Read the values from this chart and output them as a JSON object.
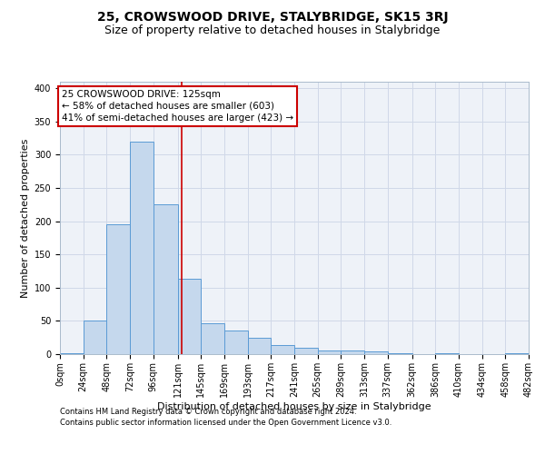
{
  "title": "25, CROWSWOOD DRIVE, STALYBRIDGE, SK15 3RJ",
  "subtitle": "Size of property relative to detached houses in Stalybridge",
  "xlabel": "Distribution of detached houses by size in Stalybridge",
  "ylabel": "Number of detached properties",
  "footnote1": "Contains HM Land Registry data © Crown copyright and database right 2024.",
  "footnote2": "Contains public sector information licensed under the Open Government Licence v3.0.",
  "annotation_title": "25 CROWSWOOD DRIVE: 125sqm",
  "annotation_line1": "← 58% of detached houses are smaller (603)",
  "annotation_line2": "41% of semi-detached houses are larger (423) →",
  "bin_edges": [
    0,
    24,
    48,
    72,
    96,
    121,
    145,
    169,
    193,
    217,
    241,
    265,
    289,
    313,
    337,
    362,
    386,
    410,
    434,
    458,
    482
  ],
  "bin_labels": [
    "0sqm",
    "24sqm",
    "48sqm",
    "72sqm",
    "96sqm",
    "121sqm",
    "145sqm",
    "169sqm",
    "193sqm",
    "217sqm",
    "241sqm",
    "265sqm",
    "289sqm",
    "313sqm",
    "337sqm",
    "362sqm",
    "386sqm",
    "410sqm",
    "434sqm",
    "458sqm",
    "482sqm"
  ],
  "bar_heights": [
    2,
    50,
    195,
    320,
    225,
    113,
    46,
    35,
    25,
    14,
    9,
    6,
    5,
    4,
    2,
    0,
    2,
    0,
    0,
    2
  ],
  "bar_color": "#c5d8ed",
  "bar_edge_color": "#5b9bd5",
  "vline_color": "#cc0000",
  "vline_x": 125,
  "ylim": [
    0,
    410
  ],
  "yticks": [
    0,
    50,
    100,
    150,
    200,
    250,
    300,
    350,
    400
  ],
  "grid_color": "#d0d8e8",
  "bg_color": "#eef2f8",
  "annotation_box_color": "#ffffff",
  "annotation_box_edge": "#cc0000",
  "title_fontsize": 10,
  "subtitle_fontsize": 9,
  "axis_label_fontsize": 8,
  "tick_fontsize": 7,
  "xlabel_fontsize": 8
}
